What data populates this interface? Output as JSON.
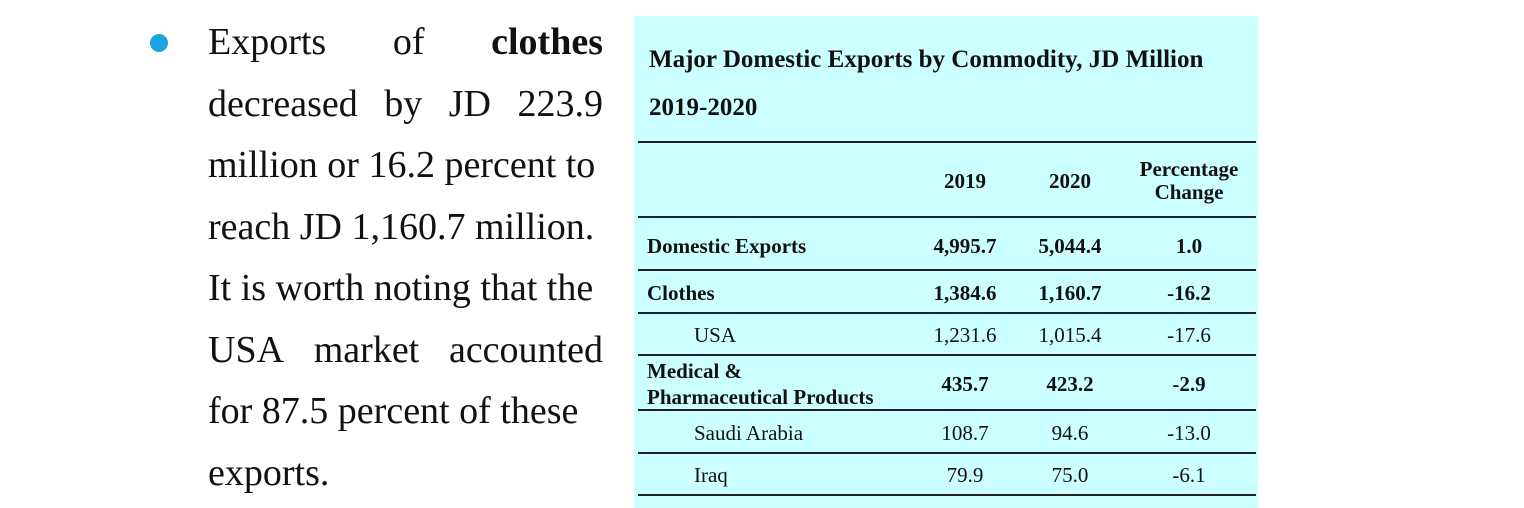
{
  "bullet_text": {
    "lines": [
      [
        "Exports",
        "of",
        "clothes"
      ],
      [
        "decreased",
        "by",
        "JD",
        "223.9"
      ],
      [
        "million or 16.2 percent to"
      ],
      [
        "reach JD 1,160.7 million."
      ],
      [
        "It is worth noting that the"
      ],
      [
        "USA",
        "market",
        "accounted"
      ],
      [
        "for 87.5 percent of these"
      ],
      [
        "exports."
      ]
    ],
    "w": {
      "l0a": "Exports",
      "l0b": "of",
      "l0c": "clothes",
      "l1a": "decreased",
      "l1b": "by",
      "l1c": "JD",
      "l1d": "223.9",
      "l2": "million or 16.2 percent to",
      "l3": "reach JD 1,160.7 million.",
      "l4": "It is worth noting that the",
      "l5a": "USA",
      "l5b": "market",
      "l5c": "accounted",
      "l6": "for 87.5 percent of these",
      "l7": "exports."
    }
  },
  "table": {
    "title": "Major Domestic Exports by Commodity,  JD Million",
    "years": "2019-2020",
    "headers": {
      "y2019": "2019",
      "y2020": "2020",
      "pc1": "Percentage",
      "pc2": "Change"
    },
    "rows": [
      {
        "label": "Domestic Exports",
        "v2019": "4,995.7",
        "v2020": "5,044.4",
        "change": "1.0"
      },
      {
        "label": "Clothes",
        "v2019": "1,384.6",
        "v2020": "1,160.7",
        "change": "-16.2"
      },
      {
        "label": "USA",
        "v2019": "1,231.6",
        "v2020": "1,015.4",
        "change": "-17.6"
      },
      {
        "label1": "Medical &",
        "label2": "Pharmaceutical Products",
        "v2019": "435.7",
        "v2020": "423.2",
        "change": "-2.9"
      },
      {
        "label": "Saudi Arabia",
        "v2019": "108.7",
        "v2020": "94.6",
        "change": "-13.0"
      },
      {
        "label": "Iraq",
        "v2019": "79.9",
        "v2020": "75.0",
        "change": "-6.1"
      }
    ]
  },
  "colors": {
    "bullet": "#1aa3e0",
    "table_bg": "#ccffff"
  }
}
